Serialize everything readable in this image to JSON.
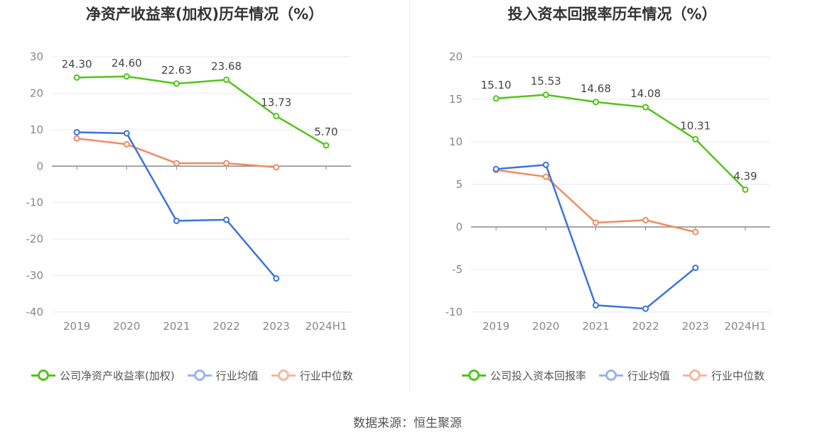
{
  "charts": [
    {
      "id": "left",
      "title": "净资产收益率(加权)历年情况（%）",
      "legend": [
        "公司净资产收益率(加权)",
        "行业均值",
        "行业中位数"
      ],
      "colors": [
        "#52c41a",
        "#3b73e0",
        "#f28b61"
      ]
    },
    {
      "id": "right",
      "title": "投入资本回报率历年情况（%）",
      "legend": [
        "公司投入资本回报率",
        "行业均值",
        "行业中位数"
      ],
      "colors": [
        "#52c41a",
        "#3b73e0",
        "#f28b61"
      ]
    }
  ],
  "chart_data": [
    {
      "type": "line",
      "title": "净资产收益率(加权)历年情况（%）",
      "categories": [
        "2019",
        "2020",
        "2021",
        "2022",
        "2023",
        "2024H1"
      ],
      "yticks": [
        30,
        20,
        10,
        0,
        -10,
        -20,
        -30,
        -40
      ],
      "ylim": [
        -40,
        30
      ],
      "grid": true,
      "legend_position": "bottom",
      "series": [
        {
          "name": "公司净资产收益率(加权)",
          "values": [
            24.3,
            24.6,
            22.63,
            23.68,
            13.73,
            5.7
          ],
          "labels": [
            "24.30",
            "24.60",
            "22.63",
            "23.68",
            "13.73",
            "5.70"
          ]
        },
        {
          "name": "行业均值",
          "values": [
            9.3,
            9.0,
            -15.0,
            -14.7,
            -30.8,
            null
          ]
        },
        {
          "name": "行业中位数",
          "values": [
            7.6,
            6.0,
            0.8,
            0.8,
            -0.3,
            null
          ]
        }
      ]
    },
    {
      "type": "line",
      "title": "投入资本回报率历年情况（%）",
      "categories": [
        "2019",
        "2020",
        "2021",
        "2022",
        "2023",
        "2024H1"
      ],
      "yticks": [
        20,
        15,
        10,
        5,
        0,
        -5,
        -10
      ],
      "ylim": [
        -10,
        20
      ],
      "grid": true,
      "legend_position": "bottom",
      "series": [
        {
          "name": "公司投入资本回报率",
          "values": [
            15.1,
            15.53,
            14.68,
            14.08,
            10.31,
            4.39
          ],
          "labels": [
            "15.10",
            "15.53",
            "14.68",
            "14.08",
            "10.31",
            "4.39"
          ]
        },
        {
          "name": "行业均值",
          "values": [
            6.8,
            7.3,
            -9.2,
            -9.6,
            -4.8,
            null
          ]
        },
        {
          "name": "行业中位数",
          "values": [
            6.7,
            5.9,
            0.5,
            0.8,
            -0.6,
            null
          ]
        }
      ]
    }
  ],
  "source": "数据来源：恒生聚源"
}
